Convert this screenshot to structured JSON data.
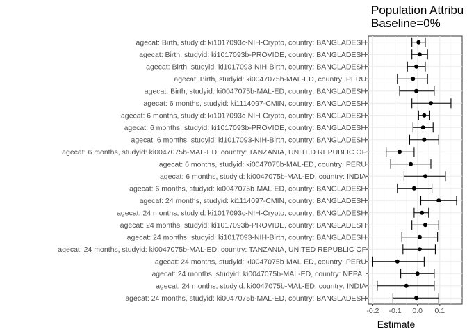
{
  "chart_data": {
    "type": "forest",
    "title": "Population Attribu",
    "subtitle": "Baseline=0%",
    "xlabel": "Estimate",
    "ylabel": "",
    "xlim": [
      -0.22,
      0.2
    ],
    "x_ticks": [
      -0.2,
      -0.1,
      0.0,
      0.1
    ],
    "x_tick_labels": [
      "-0.2",
      "-0.1",
      "0.0",
      "0.1"
    ],
    "grid": true,
    "rows": [
      {
        "label": "agecat: Birth, studyid: ki1017093c-NIH-Crypto, country: BANGLADESH",
        "estimate": 0.005,
        "lower": -0.025,
        "upper": 0.035
      },
      {
        "label": "agecat: Birth, studyid: ki1017093b-PROVIDE, country: BANGLADESH",
        "estimate": 0.01,
        "lower": -0.025,
        "upper": 0.045
      },
      {
        "label": "agecat: Birth, studyid: ki1017093-NIH-Birth, country: BANGLADESH",
        "estimate": -0.005,
        "lower": -0.045,
        "upper": 0.035
      },
      {
        "label": "agecat: Birth, studyid: ki0047075b-MAL-ED, country: PERU",
        "estimate": -0.02,
        "lower": -0.09,
        "upper": 0.045
      },
      {
        "label": "agecat: Birth, studyid: ki0047075b-MAL-ED, country: BANGLADESH",
        "estimate": -0.005,
        "lower": -0.08,
        "upper": 0.075
      },
      {
        "label": "agecat: 6 months, studyid: ki1114097-CMIN, country: BANGLADESH",
        "estimate": 0.06,
        "lower": -0.025,
        "upper": 0.15
      },
      {
        "label": "agecat: 6 months, studyid: ki1017093c-NIH-Crypto, country: BANGLADESH",
        "estimate": 0.03,
        "lower": 0.005,
        "upper": 0.055
      },
      {
        "label": "agecat: 6 months, studyid: ki1017093b-PROVIDE, country: BANGLADESH",
        "estimate": 0.025,
        "lower": -0.02,
        "upper": 0.07
      },
      {
        "label": "agecat: 6 months, studyid: ki1017093-NIH-Birth, country: BANGLADESH",
        "estimate": 0.03,
        "lower": -0.035,
        "upper": 0.095
      },
      {
        "label": "agecat: 6 months, studyid: ki0047075b-MAL-ED, country: TANZANIA, UNITED REPUBLIC OF",
        "estimate": -0.08,
        "lower": -0.14,
        "upper": -0.015
      },
      {
        "label": "agecat: 6 months, studyid: ki0047075b-MAL-ED, country: PERU",
        "estimate": -0.03,
        "lower": -0.12,
        "upper": 0.06
      },
      {
        "label": "agecat: 6 months, studyid: ki0047075b-MAL-ED, country: INDIA",
        "estimate": 0.035,
        "lower": -0.06,
        "upper": 0.125
      },
      {
        "label": "agecat: 6 months, studyid: ki0047075b-MAL-ED, country: BANGLADESH",
        "estimate": -0.015,
        "lower": -0.09,
        "upper": 0.065
      },
      {
        "label": "agecat: 24 months, studyid: ki1114097-CMIN, country: BANGLADESH",
        "estimate": 0.095,
        "lower": 0.015,
        "upper": 0.175
      },
      {
        "label": "agecat: 24 months, studyid: ki1017093c-NIH-Crypto, country: BANGLADESH",
        "estimate": 0.02,
        "lower": -0.015,
        "upper": 0.05
      },
      {
        "label": "agecat: 24 months, studyid: ki1017093b-PROVIDE, country: BANGLADESH",
        "estimate": 0.035,
        "lower": -0.025,
        "upper": 0.095
      },
      {
        "label": "agecat: 24 months, studyid: ki1017093-NIH-Birth, country: BANGLADESH",
        "estimate": 0.01,
        "lower": -0.07,
        "upper": 0.09
      },
      {
        "label": "agecat: 24 months, studyid: ki0047075b-MAL-ED, country: TANZANIA, UNITED REPUBLIC OF",
        "estimate": 0.01,
        "lower": -0.065,
        "upper": 0.08
      },
      {
        "label": "agecat: 24 months, studyid: ki0047075b-MAL-ED, country: PERU",
        "estimate": -0.09,
        "lower": -0.2,
        "upper": 0.03
      },
      {
        "label": "agecat: 24 months, studyid: ki0047075b-MAL-ED, country: NEPAL",
        "estimate": 0.0,
        "lower": -0.075,
        "upper": 0.075
      },
      {
        "label": "agecat: 24 months, studyid: ki0047075b-MAL-ED, country: INDIA",
        "estimate": -0.05,
        "lower": -0.18,
        "upper": 0.075
      },
      {
        "label": "agecat: 24 months, studyid: ki0047075b-MAL-ED, country: BANGLADESH",
        "estimate": -0.005,
        "lower": -0.11,
        "upper": 0.095
      }
    ]
  }
}
